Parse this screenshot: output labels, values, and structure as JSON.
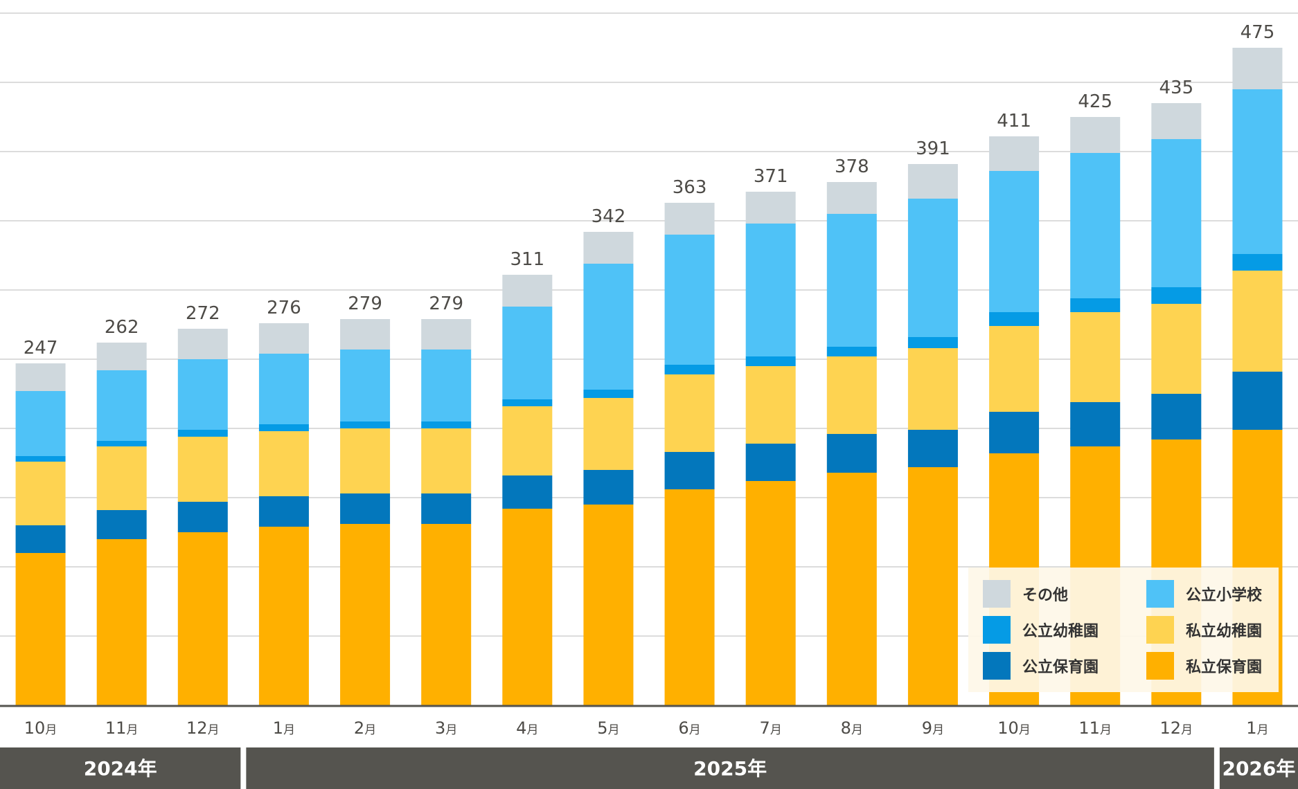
{
  "chart_data": {
    "type": "bar",
    "stacked": true,
    "title": "",
    "xlabel": "",
    "ylabel": "",
    "ylim": [
      0,
      500
    ],
    "grid": true,
    "grid_step": 50,
    "legend_position": "bottom-right",
    "categories": [
      "10月",
      "11月",
      "12月",
      "1月",
      "2月",
      "3月",
      "4月",
      "5月",
      "6月",
      "7月",
      "8月",
      "9月",
      "10月",
      "11月",
      "12月",
      "1月"
    ],
    "month_numbers": [
      "10",
      "11",
      "12",
      "1",
      "2",
      "3",
      "4",
      "5",
      "6",
      "7",
      "8",
      "9",
      "10",
      "11",
      "12",
      "1"
    ],
    "month_unit": "月",
    "year_groups": [
      {
        "label": "2024年",
        "count": 3
      },
      {
        "label": "2025年",
        "count": 12
      },
      {
        "label": "2026年",
        "count": 1
      }
    ],
    "totals": [
      247,
      262,
      272,
      276,
      279,
      279,
      311,
      342,
      363,
      371,
      378,
      391,
      411,
      425,
      435,
      475
    ],
    "series": [
      {
        "name": "私立保育園",
        "color": "#FFB000",
        "values": [
          110,
          120,
          125,
          129,
          131,
          131,
          142,
          145,
          156,
          162,
          168,
          172,
          182,
          187,
          192,
          199
        ]
      },
      {
        "name": "公立保育園",
        "color": "#0377BC",
        "values": [
          20,
          21,
          22,
          22,
          22,
          22,
          24,
          25,
          27,
          27,
          28,
          27,
          30,
          32,
          33,
          42
        ]
      },
      {
        "name": "私立幼稚園",
        "color": "#FED351",
        "values": [
          46,
          46,
          47,
          47,
          47,
          47,
          50,
          52,
          56,
          56,
          56,
          59,
          62,
          65,
          65,
          73
        ]
      },
      {
        "name": "公立幼稚園",
        "color": "#059BE5",
        "values": [
          4,
          4,
          5,
          5,
          5,
          5,
          5,
          6,
          7,
          7,
          7,
          8,
          10,
          10,
          12,
          12
        ]
      },
      {
        "name": "公立小学校",
        "color": "#4FC2F7",
        "values": [
          47,
          51,
          51,
          51,
          52,
          52,
          67,
          91,
          94,
          96,
          96,
          100,
          102,
          105,
          107,
          119
        ]
      },
      {
        "name": "その他",
        "color": "#CFD8DD",
        "values": [
          20,
          20,
          22,
          22,
          22,
          22,
          23,
          23,
          23,
          23,
          23,
          25,
          25,
          26,
          26,
          30
        ]
      }
    ],
    "legend": [
      {
        "name": "その他",
        "color": "#CFD8DD"
      },
      {
        "name": "公立小学校",
        "color": "#4FC2F7"
      },
      {
        "name": "公立幼稚園",
        "color": "#059BE5"
      },
      {
        "name": "私立幼稚園",
        "color": "#FED351"
      },
      {
        "name": "公立保育園",
        "color": "#0377BC"
      },
      {
        "name": "私立保育園",
        "color": "#FFB000"
      }
    ]
  },
  "colors": {
    "gridline": "#DCDCDC",
    "axis": "#55544F",
    "year_band": "#55544F",
    "label_text": "#4D4B47",
    "legend_bg": "#FEF7E8"
  }
}
